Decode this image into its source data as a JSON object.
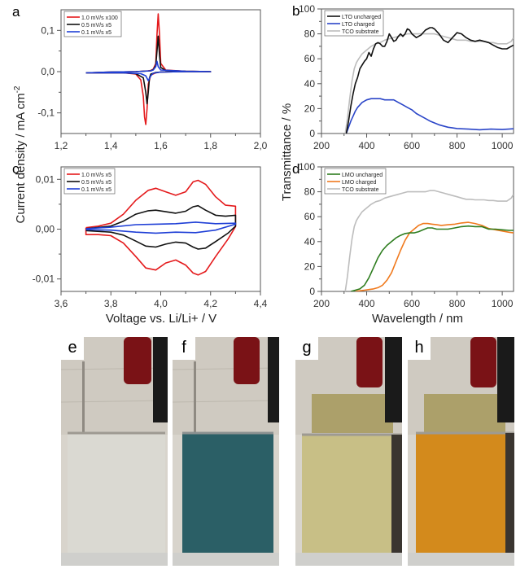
{
  "figure": {
    "shared_ylabel_top": "Current density / mA cm",
    "shared_ylabel_top_sup": "-2",
    "shared_ylabel_right": "Transmittance / %",
    "shared_xlabel_left": "Voltage vs. Li/Li+ / V",
    "shared_xlabel_right": "Wavelength / nm"
  },
  "chart_data": [
    {
      "id": "a",
      "panel_label": "a",
      "type": "line",
      "title": "",
      "xlabel": "",
      "ylabel": "Current density / mA cm-2",
      "xlim": [
        1.2,
        2.0
      ],
      "ylim": [
        -0.15,
        0.15
      ],
      "xticks": [
        1.2,
        1.4,
        1.6,
        1.8,
        2.0
      ],
      "xtick_labels": [
        "1,2",
        "1,4",
        "1,6",
        "1,8",
        "2,0"
      ],
      "yticks": [
        -0.1,
        0.0,
        0.1
      ],
      "ytick_labels": [
        "-0,1",
        "0,0",
        "0,1"
      ],
      "grid": false,
      "legend_position": "top-left",
      "series": [
        {
          "name": "1.0 mV/s  x100",
          "color": "#e41a1c",
          "x": [
            1.3,
            1.45,
            1.5,
            1.52,
            1.53,
            1.535,
            1.54,
            1.545,
            1.55,
            1.56,
            1.58,
            1.6,
            1.7,
            1.8,
            1.7,
            1.62,
            1.6,
            1.595,
            1.59,
            1.585,
            1.58,
            1.57,
            1.56,
            1.55,
            1.5,
            1.4,
            1.3
          ],
          "y": [
            -0.003,
            -0.003,
            -0.006,
            -0.02,
            -0.06,
            -0.11,
            -0.128,
            -0.09,
            -0.03,
            -0.008,
            -0.003,
            -0.001,
            0.0,
            0.0,
            0.001,
            0.004,
            0.02,
            0.09,
            0.14,
            0.09,
            0.02,
            0.006,
            0.003,
            0.002,
            0.0,
            -0.001,
            -0.003
          ]
        },
        {
          "name": "0.5 mV/s  x5",
          "color": "#111111",
          "x": [
            1.3,
            1.45,
            1.5,
            1.53,
            1.54,
            1.545,
            1.55,
            1.555,
            1.56,
            1.58,
            1.6,
            1.7,
            1.8,
            1.7,
            1.62,
            1.6,
            1.595,
            1.59,
            1.585,
            1.58,
            1.57,
            1.56,
            1.5,
            1.4,
            1.3
          ],
          "y": [
            -0.003,
            -0.003,
            -0.005,
            -0.015,
            -0.05,
            -0.078,
            -0.05,
            -0.015,
            -0.006,
            -0.002,
            -0.001,
            0.0,
            0.0,
            0.001,
            0.003,
            0.01,
            0.04,
            0.086,
            0.05,
            0.015,
            0.005,
            0.002,
            0.0,
            -0.001,
            -0.003
          ]
        },
        {
          "name": "0.1 mV/s  x5",
          "color": "#1f3fd6",
          "x": [
            1.3,
            1.45,
            1.52,
            1.54,
            1.55,
            1.56,
            1.57,
            1.6,
            1.7,
            1.8,
            1.7,
            1.6,
            1.59,
            1.585,
            1.58,
            1.57,
            1.56,
            1.5,
            1.4,
            1.3
          ],
          "y": [
            -0.003,
            -0.003,
            -0.005,
            -0.01,
            -0.022,
            -0.01,
            -0.004,
            -0.001,
            0.0,
            0.0,
            0.001,
            0.004,
            0.012,
            0.025,
            0.012,
            0.004,
            0.002,
            0.0,
            -0.001,
            -0.003
          ]
        }
      ]
    },
    {
      "id": "b",
      "panel_label": "b",
      "type": "line",
      "title": "",
      "xlabel": "",
      "ylabel": "Transmittance / %",
      "xlim": [
        200,
        1050
      ],
      "ylim": [
        0,
        100
      ],
      "xticks": [
        200,
        400,
        600,
        800,
        1000
      ],
      "xtick_labels": [
        "200",
        "400",
        "600",
        "800",
        "1000"
      ],
      "yticks": [
        0,
        20,
        40,
        60,
        80,
        100
      ],
      "ytick_labels": [
        "0",
        "20",
        "40",
        "60",
        "80",
        "100"
      ],
      "grid": false,
      "legend_position": "top-left",
      "series": [
        {
          "name": "LTO uncharged",
          "color": "#111111",
          "x": [
            310,
            320,
            330,
            340,
            350,
            360,
            370,
            380,
            390,
            400,
            410,
            420,
            430,
            440,
            450,
            460,
            470,
            480,
            490,
            500,
            510,
            520,
            530,
            540,
            550,
            560,
            570,
            580,
            590,
            600,
            620,
            640,
            660,
            680,
            690,
            700,
            720,
            740,
            760,
            780,
            800,
            820,
            840,
            860,
            880,
            900,
            920,
            940,
            960,
            980,
            1000,
            1020,
            1040,
            1050
          ],
          "y": [
            0,
            10,
            22,
            32,
            40,
            45,
            52,
            55,
            58,
            60,
            65,
            62,
            68,
            72,
            73,
            72,
            70,
            70,
            74,
            80,
            77,
            74,
            75,
            78,
            80,
            78,
            80,
            84,
            83,
            80,
            77,
            79,
            83,
            85,
            85,
            84,
            80,
            75,
            73,
            77,
            81,
            80,
            77,
            75,
            74,
            75,
            74,
            73,
            71,
            69,
            68,
            68,
            70,
            71
          ]
        },
        {
          "name": "LTO charged",
          "color": "#2a45c8",
          "x": [
            310,
            320,
            330,
            340,
            350,
            360,
            380,
            400,
            420,
            440,
            460,
            480,
            500,
            520,
            540,
            560,
            580,
            600,
            620,
            640,
            660,
            680,
            700,
            720,
            740,
            760,
            780,
            800,
            850,
            900,
            950,
            1000,
            1050
          ],
          "y": [
            0,
            5,
            10,
            14,
            18,
            21,
            25,
            27,
            28,
            28,
            28,
            27,
            27,
            27,
            25,
            23,
            21,
            19,
            16,
            14,
            12,
            10,
            8.5,
            7,
            6,
            5,
            4.5,
            4,
            3.5,
            3,
            3.5,
            3.2,
            3.8
          ]
        },
        {
          "name": "TCO substrate",
          "color": "#bdbdbd",
          "x": [
            305,
            315,
            325,
            335,
            345,
            355,
            365,
            380,
            400,
            420,
            440,
            460,
            480,
            500,
            520,
            540,
            560,
            580,
            600,
            620,
            640,
            660,
            680,
            700,
            720,
            740,
            760,
            780,
            800,
            820,
            840,
            860,
            880,
            900,
            920,
            940,
            960,
            980,
            1000,
            1020,
            1040,
            1050
          ],
          "y": [
            0,
            12,
            28,
            42,
            52,
            57,
            60,
            64,
            67,
            70,
            72,
            73,
            75,
            76,
            77,
            78,
            79,
            80,
            80,
            80,
            80,
            80,
            80,
            80,
            79,
            78,
            77,
            76,
            75,
            75,
            75,
            74,
            74,
            74,
            74,
            73,
            73,
            72,
            72,
            72,
            74,
            77
          ]
        }
      ]
    },
    {
      "id": "c",
      "panel_label": "c",
      "type": "line",
      "title": "",
      "xlabel": "Voltage vs. Li/Li+ / V",
      "ylabel": "Current density / mA cm-2",
      "xlim": [
        3.6,
        4.4
      ],
      "ylim": [
        -0.0125,
        0.0125
      ],
      "xticks": [
        3.6,
        3.8,
        4.0,
        4.2,
        4.4
      ],
      "xtick_labels": [
        "3,6",
        "3,8",
        "4,0",
        "4,2",
        "4,4"
      ],
      "yticks": [
        -0.01,
        0.0,
        0.01
      ],
      "ytick_labels": [
        "-0,01",
        "0,00",
        "0,01"
      ],
      "grid": false,
      "legend_position": "top-left",
      "series": [
        {
          "name": "1.0 mV/s  x5",
          "color": "#e41a1c",
          "x": [
            3.7,
            3.75,
            3.8,
            3.85,
            3.9,
            3.95,
            3.98,
            4.02,
            4.06,
            4.1,
            4.13,
            4.15,
            4.18,
            4.22,
            4.26,
            4.3,
            4.3,
            4.27,
            4.22,
            4.18,
            4.15,
            4.13,
            4.1,
            4.06,
            4.02,
            3.98,
            3.94,
            3.9,
            3.85,
            3.8,
            3.75,
            3.7,
            3.7
          ],
          "y": [
            0.0003,
            0.0006,
            0.0012,
            0.003,
            0.0058,
            0.0078,
            0.0082,
            0.0075,
            0.0068,
            0.0075,
            0.0095,
            0.0098,
            0.009,
            0.0065,
            0.0048,
            0.0046,
            0.0005,
            -0.002,
            -0.0055,
            -0.0085,
            -0.0092,
            -0.0088,
            -0.0072,
            -0.0062,
            -0.0068,
            -0.0082,
            -0.0078,
            -0.0055,
            -0.0028,
            -0.0013,
            -0.0011,
            -0.0011,
            0.0003
          ]
        },
        {
          "name": "0.5 mV/s  x5",
          "color": "#111111",
          "x": [
            3.7,
            3.8,
            3.85,
            3.9,
            3.95,
            3.98,
            4.02,
            4.06,
            4.1,
            4.13,
            4.15,
            4.18,
            4.22,
            4.26,
            4.3,
            4.3,
            4.27,
            4.22,
            4.18,
            4.15,
            4.13,
            4.1,
            4.06,
            4.02,
            3.98,
            3.94,
            3.9,
            3.85,
            3.8,
            3.7
          ],
          "y": [
            0.0001,
            0.0006,
            0.0016,
            0.003,
            0.0037,
            0.0038,
            0.0035,
            0.0032,
            0.0036,
            0.0045,
            0.0047,
            0.0038,
            0.0028,
            0.0026,
            0.0028,
            0.0006,
            -0.0008,
            -0.0025,
            -0.0038,
            -0.004,
            -0.0036,
            -0.0028,
            -0.0026,
            -0.003,
            -0.0036,
            -0.0034,
            -0.0024,
            -0.0012,
            -0.0006,
            -0.0003
          ]
        },
        {
          "name": "0.1 mV/s  x5",
          "color": "#1f3fd6",
          "x": [
            3.7,
            3.8,
            3.9,
            3.98,
            4.06,
            4.14,
            4.22,
            4.3,
            4.3,
            4.22,
            4.14,
            4.06,
            3.98,
            3.9,
            3.8,
            3.7
          ],
          "y": [
            0.0001,
            0.0004,
            0.0009,
            0.001,
            0.0011,
            0.0014,
            0.0011,
            0.0012,
            0.001,
            -0.0002,
            -0.0007,
            -0.0006,
            -0.0008,
            -0.0006,
            -0.0002,
            -0.0001
          ]
        }
      ]
    },
    {
      "id": "d",
      "panel_label": "d",
      "type": "line",
      "title": "",
      "xlabel": "Wavelength / nm",
      "ylabel": "Transmittance / %",
      "xlim": [
        200,
        1050
      ],
      "ylim": [
        0,
        100
      ],
      "xticks": [
        200,
        400,
        600,
        800,
        1000
      ],
      "xtick_labels": [
        "200",
        "400",
        "600",
        "800",
        "1000"
      ],
      "yticks": [
        0,
        20,
        40,
        60,
        80,
        100
      ],
      "ytick_labels": [
        "0",
        "20",
        "40",
        "60",
        "80",
        "100"
      ],
      "grid": false,
      "legend_position": "top-left",
      "series": [
        {
          "name": "LMO uncharged",
          "color": "#2e7d1f",
          "x": [
            330,
            350,
            370,
            390,
            410,
            430,
            450,
            470,
            490,
            510,
            530,
            550,
            570,
            590,
            610,
            630,
            650,
            670,
            690,
            710,
            730,
            760,
            790,
            820,
            850,
            880,
            910,
            940,
            970,
            1000,
            1030,
            1050
          ],
          "y": [
            0,
            1,
            2,
            5,
            11,
            19,
            27,
            33,
            37,
            40,
            43,
            45,
            46.5,
            47,
            47,
            48,
            49.5,
            51,
            51,
            50,
            50,
            50,
            51,
            52,
            52.5,
            52,
            52,
            50,
            50,
            49.5,
            49,
            49
          ]
        },
        {
          "name": "LMO charged",
          "color": "#f07a1e",
          "x": [
            350,
            370,
            390,
            410,
            430,
            450,
            470,
            490,
            510,
            530,
            550,
            570,
            590,
            610,
            630,
            650,
            670,
            690,
            710,
            730,
            760,
            790,
            820,
            850,
            880,
            910,
            940,
            970,
            1000,
            1030,
            1050
          ],
          "y": [
            0,
            0.5,
            1,
            1.5,
            2,
            3,
            5,
            9,
            15,
            24,
            33,
            41,
            47,
            50,
            53,
            54.5,
            54.5,
            54,
            53.5,
            53,
            53.5,
            54,
            55,
            55.5,
            54.5,
            53,
            50.5,
            49.5,
            48.5,
            47.5,
            47
          ]
        },
        {
          "name": "TCO substrate",
          "color": "#bdbdbd",
          "x": [
            305,
            315,
            325,
            335,
            345,
            355,
            365,
            380,
            400,
            420,
            440,
            460,
            480,
            500,
            520,
            540,
            560,
            580,
            600,
            620,
            640,
            660,
            680,
            700,
            720,
            740,
            760,
            780,
            800,
            820,
            840,
            860,
            880,
            900,
            920,
            940,
            960,
            980,
            1000,
            1020,
            1040,
            1050
          ],
          "y": [
            0,
            12,
            28,
            42,
            52,
            57,
            60,
            64,
            67,
            70,
            72,
            73,
            75,
            76,
            77,
            78,
            79,
            80,
            80,
            80,
            80,
            80,
            81,
            81,
            80,
            79,
            78,
            77,
            76,
            75,
            74,
            74,
            73.5,
            73.5,
            73.5,
            73,
            73,
            72.5,
            72.5,
            72.5,
            75,
            78
          ]
        }
      ]
    }
  ],
  "photos": [
    {
      "label": "e",
      "liquid_color": "#dad9d2",
      "description": "clear"
    },
    {
      "label": "f",
      "liquid_color": "#2b5f66",
      "description": "blue"
    },
    {
      "label": "g",
      "liquid_color": "#c8bf86",
      "description": "pale yellow"
    },
    {
      "label": "h",
      "liquid_color": "#d38a1c",
      "description": "orange"
    }
  ]
}
